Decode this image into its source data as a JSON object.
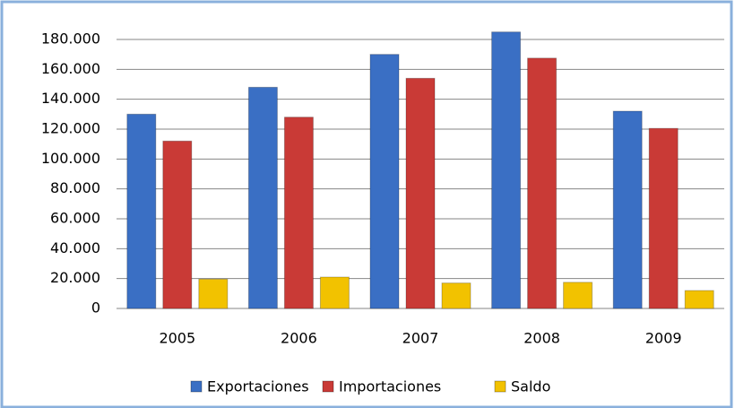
{
  "chart_data": {
    "type": "bar",
    "categories": [
      "2005",
      "2006",
      "2007",
      "2008",
      "2009"
    ],
    "series": [
      {
        "name": "Exportaciones",
        "color": "#3a6fc4",
        "values": [
          130000,
          148000,
          170000,
          185000,
          132000
        ]
      },
      {
        "name": "Importaciones",
        "color": "#c93a36",
        "values": [
          112000,
          128000,
          154000,
          167500,
          120500
        ]
      },
      {
        "name": "Saldo",
        "color": "#f2c200",
        "values": [
          19600,
          21000,
          17000,
          17500,
          12000
        ]
      }
    ],
    "ylim": [
      0,
      180000
    ],
    "yticks": [
      0,
      {
        "value": 20000,
        "label": "20.000"
      },
      {
        "value": 40000,
        "label": "40.000"
      },
      {
        "value": 60000,
        "label": "60.000"
      },
      {
        "value": 80000,
        "label": "80.000"
      },
      {
        "value": 100000,
        "label": "100.000"
      },
      {
        "value": 120000,
        "label": "120.000"
      },
      {
        "value": 140000,
        "label": "140.000"
      },
      {
        "value": 160000,
        "label": "160.000"
      },
      {
        "value": 180000,
        "label": "180.000"
      }
    ],
    "grid": true,
    "legend": "bottom"
  }
}
